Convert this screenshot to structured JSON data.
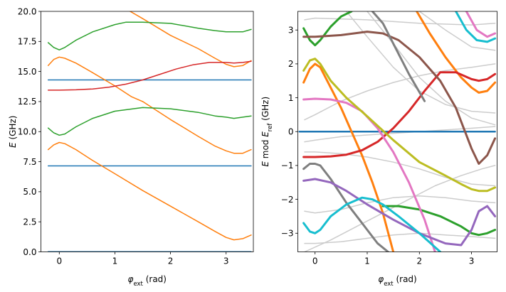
{
  "chart_data": [
    {
      "type": "line",
      "xlabel": {
        "symbol": "φ",
        "sub": "ext",
        "unit": " (rad)"
      },
      "ylabel": {
        "symbol": "E",
        "unit": " (GHz)"
      },
      "xlim": [
        -0.33,
        3.49
      ],
      "ylim": [
        0,
        20
      ],
      "xticks": [
        0,
        1,
        2,
        3
      ],
      "yticks": [
        0,
        2.5,
        5,
        7.5,
        10,
        12.5,
        15,
        17.5,
        20
      ],
      "ytick_labels": [
        "0.0",
        "2.5",
        "5.0",
        "7.5",
        "10.0",
        "12.5",
        "15.0",
        "17.5",
        "20.0"
      ],
      "grid": false,
      "series": [
        {
          "color": "#1f77b4",
          "x": [
            -0.2,
            3.45
          ],
          "y": [
            0.02,
            0.02
          ]
        },
        {
          "color": "#1f77b4",
          "x": [
            -0.2,
            3.45
          ],
          "y": [
            7.15,
            7.15
          ]
        },
        {
          "color": "#1f77b4",
          "x": [
            -0.2,
            3.45
          ],
          "y": [
            14.3,
            14.3
          ]
        },
        {
          "color": "#ff7f0e",
          "x": [
            -0.2,
            -0.1,
            0,
            0.1,
            0.3,
            0.6,
            1.0,
            1.5,
            2.0,
            2.5,
            2.8,
            3.0,
            3.14,
            3.3,
            3.45
          ],
          "y": [
            8.5,
            8.9,
            9.1,
            9.0,
            8.5,
            7.6,
            6.5,
            5.1,
            3.8,
            2.5,
            1.7,
            1.2,
            1.0,
            1.1,
            1.4
          ]
        },
        {
          "color": "#ff7f0e",
          "x": [
            -0.2,
            -0.1,
            0,
            0.1,
            0.3,
            0.6,
            1.0,
            1.3,
            1.5
          ],
          "y": [
            15.5,
            16.0,
            16.2,
            16.1,
            15.7,
            14.9,
            13.8,
            12.9,
            12.5
          ]
        },
        {
          "color": "#ff7f0e",
          "x": [
            1.5,
            2.0,
            2.5,
            2.8,
            3.0,
            3.14,
            3.3,
            3.45
          ],
          "y": [
            12.5,
            11.0,
            9.6,
            8.8,
            8.4,
            8.2,
            8.2,
            8.5
          ]
        },
        {
          "color": "#ff7f0e",
          "x": [
            0.9,
            1.2,
            1.5,
            2.0,
            2.5,
            2.8,
            3.0,
            3.14,
            3.3,
            3.45
          ],
          "y": [
            21.0,
            20.2,
            19.4,
            18.0,
            16.9,
            16.1,
            15.6,
            15.4,
            15.5,
            15.9
          ]
        },
        {
          "color": "#2ca02c",
          "x": [
            -0.2,
            -0.1,
            0,
            0.1,
            0.3,
            0.6,
            1.0,
            1.5,
            2.0,
            2.5,
            2.8,
            3.0,
            3.14,
            3.3,
            3.45
          ],
          "y": [
            10.3,
            9.9,
            9.7,
            9.8,
            10.4,
            11.1,
            11.7,
            12.0,
            11.9,
            11.6,
            11.3,
            11.2,
            11.1,
            11.2,
            11.3
          ]
        },
        {
          "color": "#2ca02c",
          "x": [
            -0.2,
            -0.1,
            0,
            0.1,
            0.3,
            0.6,
            1.0,
            1.2,
            1.5,
            2.0,
            2.5,
            2.8,
            3.0,
            3.14,
            3.3,
            3.45
          ],
          "y": [
            17.4,
            17.0,
            16.8,
            17.0,
            17.6,
            18.3,
            18.9,
            19.1,
            19.1,
            19.0,
            18.6,
            18.4,
            18.3,
            18.3,
            18.3,
            18.5
          ]
        },
        {
          "color": "#d62728",
          "x": [
            -0.2,
            0,
            0.3,
            0.6,
            0.9,
            1.2,
            1.5,
            1.8,
            2.1,
            2.4,
            2.7,
            3.0,
            3.14,
            3.3,
            3.45
          ],
          "y": [
            13.45,
            13.45,
            13.48,
            13.55,
            13.7,
            13.95,
            14.3,
            14.75,
            15.2,
            15.55,
            15.75,
            15.75,
            15.7,
            15.75,
            15.85
          ]
        }
      ]
    },
    {
      "type": "line",
      "xlabel": {
        "symbol": "φ",
        "sub": "ext",
        "unit": " (rad)"
      },
      "ylabel": {
        "symbol": "E",
        "mid": " mod ",
        "symbol2": "E",
        "sub2": "ref",
        "unit": " (GHz)"
      },
      "xlim": [
        -0.33,
        3.49
      ],
      "ylim": [
        -3.55,
        3.55
      ],
      "xticks": [
        0,
        1,
        2,
        3
      ],
      "yticks": [
        -3,
        -2,
        -1,
        0,
        1,
        2,
        3
      ],
      "ytick_labels": [
        "−3",
        "−2",
        "−1",
        "0",
        "1",
        "2",
        "3"
      ],
      "grid": false,
      "series": [
        {
          "color": "#cccccc",
          "w": 1.5,
          "x": [
            -0.2,
            0,
            1,
            2,
            3,
            3.45
          ],
          "y": [
            3.3,
            3.35,
            3.3,
            3.2,
            3.15,
            3.2
          ]
        },
        {
          "color": "#cccccc",
          "w": 1.5,
          "x": [
            -0.2,
            0,
            0.5,
            1,
            1.5,
            2,
            2.5,
            3,
            3.45
          ],
          "y": [
            0.35,
            0.5,
            0.9,
            1.2,
            1.45,
            1.65,
            1.8,
            1.9,
            2.0
          ]
        },
        {
          "color": "#cccccc",
          "w": 1.5,
          "x": [
            -0.2,
            0,
            0.5,
            1,
            1.5,
            2,
            2.5,
            3,
            3.45
          ],
          "y": [
            -0.3,
            -0.25,
            -0.15,
            -0.1,
            -0.05,
            0.0,
            0.05,
            0.1,
            0.15
          ]
        },
        {
          "color": "#cccccc",
          "w": 1.5,
          "x": [
            -0.2,
            0,
            0.5,
            1,
            1.5,
            2,
            2.5,
            3,
            3.45
          ],
          "y": [
            -0.6,
            -0.6,
            -0.65,
            -0.75,
            -0.9,
            -1.1,
            -1.35,
            -1.55,
            -1.6
          ]
        },
        {
          "color": "#cccccc",
          "w": 1.5,
          "x": [
            -0.2,
            0,
            0.5,
            1,
            1.5,
            2,
            2.5,
            3,
            3.45
          ],
          "y": [
            -2.35,
            -2.4,
            -2.3,
            -2.1,
            -1.95,
            -1.9,
            -1.95,
            -2.05,
            -2.1
          ]
        },
        {
          "color": "#cccccc",
          "w": 1.5,
          "x": [
            -0.2,
            0,
            0.5,
            1,
            1.5,
            2,
            2.5,
            3,
            3.45
          ],
          "y": [
            -3.3,
            -3.3,
            -3.25,
            -3.15,
            -3.05,
            -3.0,
            -3.05,
            -3.1,
            -3.15
          ]
        },
        {
          "color": "#cccccc",
          "w": 1.5,
          "x": [
            0.6,
            1.0,
            1.5,
            2.0,
            2.5,
            3.0,
            3.45
          ],
          "y": [
            3.55,
            2.8,
            1.9,
            1.2,
            0.8,
            0.6,
            0.55
          ]
        },
        {
          "color": "#cccccc",
          "w": 1.5,
          "x": [
            1.0,
            1.5,
            2.0,
            2.5,
            3.0,
            3.45
          ],
          "y": [
            3.55,
            2.6,
            1.6,
            0.9,
            0.4,
            0.2
          ]
        },
        {
          "color": "#cccccc",
          "w": 1.5,
          "x": [
            2.0,
            2.5,
            3.0,
            3.45
          ],
          "y": [
            3.55,
            3.0,
            2.5,
            2.4
          ]
        },
        {
          "color": "#cccccc",
          "w": 1.5,
          "x": [
            -0.2,
            0.3,
            0.8,
            1.3,
            1.8,
            2.3,
            2.8,
            3.2,
            3.45
          ],
          "y": [
            -3.55,
            -3.2,
            -2.8,
            -2.4,
            -2.0,
            -1.6,
            -1.3,
            -1.1,
            -1.0
          ]
        },
        {
          "color": "#1f77b4",
          "w": 2.5,
          "x": [
            -0.3,
            3.45
          ],
          "y": [
            0.0,
            0.0
          ]
        },
        {
          "color": "#ff7f0e",
          "w": 3,
          "x": [
            -0.22,
            -0.1,
            0,
            0.1,
            0.3,
            0.5,
            0.7,
            0.9,
            1.1,
            1.3,
            1.5
          ],
          "y": [
            1.45,
            1.85,
            2.0,
            1.9,
            1.3,
            0.7,
            0.0,
            -0.7,
            -1.5,
            -2.4,
            -3.55
          ]
        },
        {
          "color": "#ff7f0e",
          "w": 3,
          "x": [
            1.95,
            2.2,
            2.5,
            2.8,
            3.0,
            3.14,
            3.3,
            3.45
          ],
          "y": [
            3.55,
            2.9,
            2.2,
            1.6,
            1.3,
            1.15,
            1.2,
            1.45
          ]
        },
        {
          "color": "#2ca02c",
          "w": 3,
          "x": [
            -0.22,
            -0.1,
            0,
            0.1,
            0.3,
            0.5,
            0.7
          ],
          "y": [
            3.05,
            2.7,
            2.55,
            2.7,
            3.1,
            3.4,
            3.55
          ]
        },
        {
          "color": "#2ca02c",
          "w": 3,
          "x": [
            1.3,
            1.6,
            2.0,
            2.4,
            2.8,
            3.0,
            3.14,
            3.3,
            3.45
          ],
          "y": [
            -2.2,
            -2.2,
            -2.3,
            -2.5,
            -2.8,
            -3.0,
            -3.05,
            -3.0,
            -2.9
          ]
        },
        {
          "color": "#d62728",
          "w": 3,
          "x": [
            -0.22,
            0,
            0.3,
            0.6,
            0.9,
            1.2,
            1.5,
            1.8,
            2.1,
            2.4,
            2.7,
            3.0,
            3.14,
            3.3,
            3.45
          ],
          "y": [
            -0.75,
            -0.75,
            -0.73,
            -0.68,
            -0.55,
            -0.3,
            0.1,
            0.6,
            1.2,
            1.75,
            1.75,
            1.55,
            1.5,
            1.55,
            1.7
          ]
        },
        {
          "color": "#8c564b",
          "w": 3,
          "x": [
            -0.22,
            0,
            0.5,
            1.0,
            1.3,
            1.6,
            2.0,
            2.4,
            2.7,
            3.0,
            3.14,
            3.3,
            3.45
          ],
          "y": [
            2.8,
            2.8,
            2.85,
            2.95,
            2.9,
            2.7,
            2.2,
            1.5,
            0.7,
            -0.5,
            -0.95,
            -0.7,
            -0.2
          ]
        },
        {
          "color": "#e377c2",
          "w": 3,
          "x": [
            -0.22,
            0,
            0.3,
            0.6,
            0.9,
            1.2,
            1.5,
            1.8,
            2.1,
            2.3
          ],
          "y": [
            0.95,
            0.97,
            0.95,
            0.85,
            0.6,
            0.1,
            -0.6,
            -1.5,
            -2.6,
            -3.55
          ]
        },
        {
          "color": "#e377c2",
          "w": 3,
          "x": [
            2.9,
            3.1,
            3.3,
            3.45
          ],
          "y": [
            3.55,
            3.0,
            2.8,
            2.9
          ]
        },
        {
          "color": "#bcbd22",
          "w": 3,
          "x": [
            -0.22,
            -0.1,
            0,
            0.1,
            0.3,
            0.6,
            1.0,
            1.5,
            2.0,
            2.5,
            2.8,
            3.0,
            3.14,
            3.3,
            3.45
          ],
          "y": [
            1.8,
            2.1,
            2.15,
            2.0,
            1.5,
            1.0,
            0.45,
            -0.25,
            -0.9,
            -1.3,
            -1.55,
            -1.7,
            -1.75,
            -1.75,
            -1.65
          ]
        },
        {
          "color": "#7f7f7f",
          "w": 3,
          "x": [
            -0.22,
            -0.1,
            0,
            0.1,
            0.3,
            0.6,
            0.9,
            1.2,
            1.4
          ],
          "y": [
            -1.1,
            -0.95,
            -0.95,
            -1.0,
            -1.4,
            -2.1,
            -2.7,
            -3.3,
            -3.55
          ]
        },
        {
          "color": "#7f7f7f",
          "w": 3,
          "x": [
            1.1,
            1.3,
            1.5,
            1.8,
            2.1
          ],
          "y": [
            3.55,
            3.2,
            2.6,
            1.7,
            0.9
          ]
        },
        {
          "color": "#9467bd",
          "w": 3,
          "x": [
            -0.22,
            0,
            0.3,
            0.6,
            1.0,
            1.5,
            2.0,
            2.5,
            2.8,
            3.0,
            3.14,
            3.3,
            3.45
          ],
          "y": [
            -1.45,
            -1.4,
            -1.5,
            -1.75,
            -2.15,
            -2.6,
            -3.0,
            -3.3,
            -3.35,
            -2.9,
            -2.35,
            -2.2,
            -2.5
          ]
        },
        {
          "color": "#17becf",
          "w": 3,
          "x": [
            -0.22,
            -0.1,
            0,
            0.1,
            0.3,
            0.6,
            0.9,
            1.1,
            1.3,
            1.6,
            2.0,
            2.4
          ],
          "y": [
            -2.7,
            -2.95,
            -3.0,
            -2.9,
            -2.5,
            -2.15,
            -1.95,
            -2.0,
            -2.15,
            -2.5,
            -3.0,
            -3.55
          ]
        },
        {
          "color": "#17becf",
          "w": 3,
          "x": [
            2.7,
            2.9,
            3.1,
            3.3,
            3.45
          ],
          "y": [
            3.55,
            3.0,
            2.7,
            2.65,
            2.75
          ]
        }
      ]
    }
  ]
}
